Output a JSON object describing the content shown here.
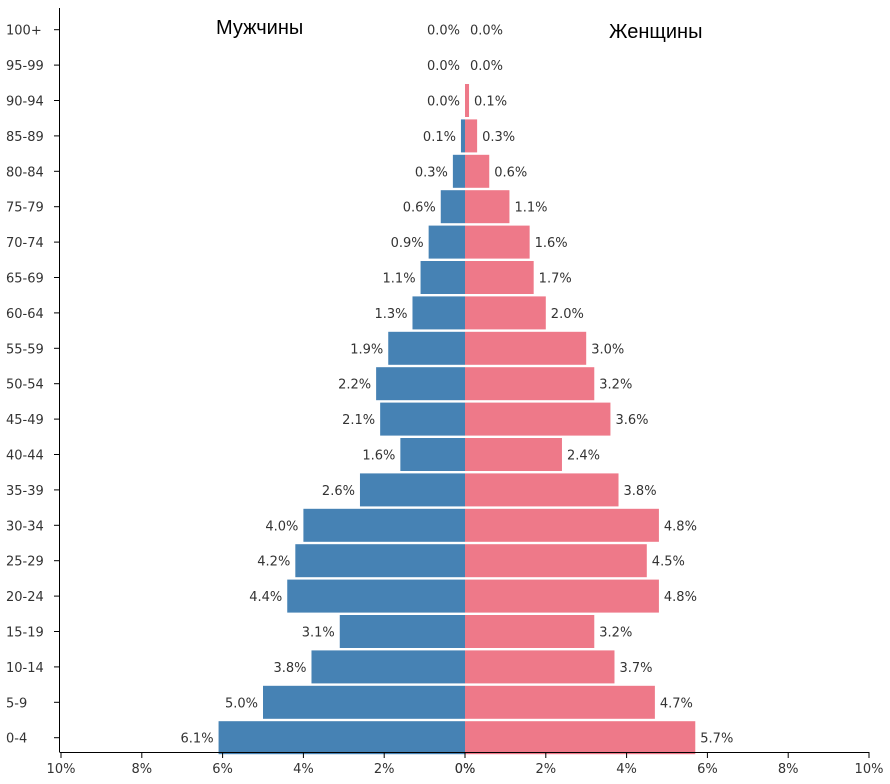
{
  "chart_data": {
    "type": "bar",
    "orientation": "horizontal-pyramid",
    "categories": [
      "100+",
      "95-99",
      "90-94",
      "85-89",
      "80-84",
      "75-79",
      "70-74",
      "65-69",
      "60-64",
      "55-59",
      "50-54",
      "45-49",
      "40-44",
      "35-39",
      "30-34",
      "25-29",
      "20-24",
      "15-19",
      "10-14",
      "5-9",
      "0-4"
    ],
    "series": [
      {
        "name": "Мужчины",
        "side": "left",
        "color": "#4682b4",
        "values": [
          0.0,
          0.0,
          0.0,
          0.1,
          0.3,
          0.6,
          0.9,
          1.1,
          1.3,
          1.9,
          2.2,
          2.1,
          1.6,
          2.6,
          4.0,
          4.2,
          4.4,
          3.1,
          3.8,
          5.0,
          6.1
        ],
        "labels": [
          "0.0%",
          "0.0%",
          "0.0%",
          "0.1%",
          "0.3%",
          "0.6%",
          "0.9%",
          "1.1%",
          "1.3%",
          "1.9%",
          "2.2%",
          "2.1%",
          "1.6%",
          "2.6%",
          "4.0%",
          "4.2%",
          "4.4%",
          "3.1%",
          "3.8%",
          "5.0%",
          "6.1%"
        ]
      },
      {
        "name": "Женщины",
        "side": "right",
        "color": "#ee7989",
        "values": [
          0.0,
          0.0,
          0.1,
          0.3,
          0.6,
          1.1,
          1.6,
          1.7,
          2.0,
          3.0,
          3.2,
          3.6,
          2.4,
          3.8,
          4.8,
          4.5,
          4.8,
          3.2,
          3.7,
          4.7,
          5.7
        ],
        "labels": [
          "0.0%",
          "0.0%",
          "0.1%",
          "0.3%",
          "0.6%",
          "1.1%",
          "1.6%",
          "1.7%",
          "2.0%",
          "3.0%",
          "3.2%",
          "3.6%",
          "2.4%",
          "3.8%",
          "4.8%",
          "4.5%",
          "4.8%",
          "3.2%",
          "3.7%",
          "4.7%",
          "5.7%"
        ]
      }
    ],
    "x_ticks": [
      "10%",
      "8%",
      "6%",
      "4%",
      "2%",
      "0%",
      "0%",
      "2%",
      "4%",
      "6%",
      "8%",
      "10%"
    ],
    "xlim": [
      -10,
      10
    ],
    "legend": [
      "Мужчины",
      "Женщины"
    ],
    "legend_placement": "top",
    "grid": false
  }
}
